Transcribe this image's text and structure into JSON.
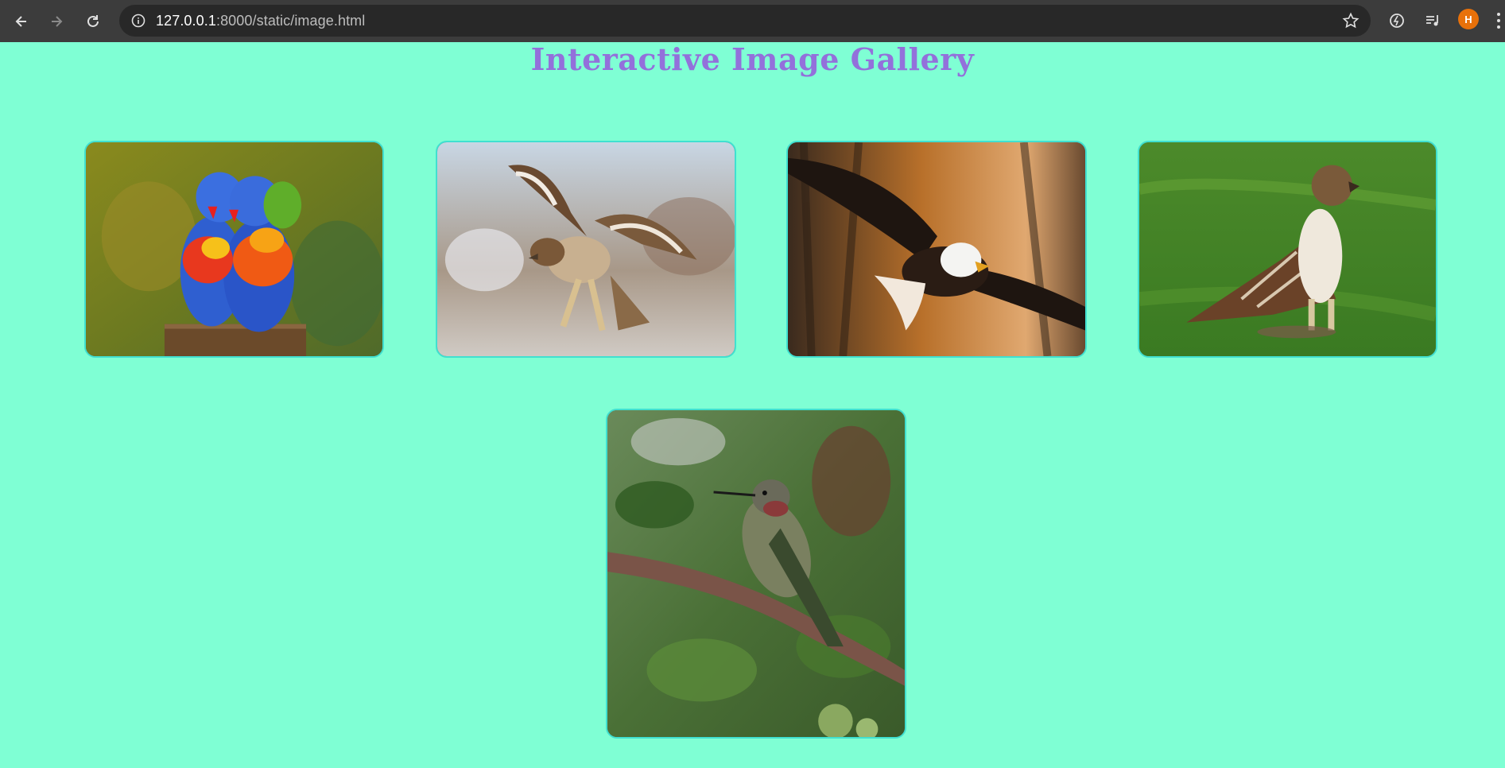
{
  "browser": {
    "url_host": "127.0.0.1",
    "url_rest": ":8000/static/image.html",
    "avatar_initial": "H"
  },
  "page": {
    "title": "Interactive Image Gallery"
  },
  "gallery": {
    "images": [
      {
        "subject": "rainbow-lorikeets"
      },
      {
        "subject": "hawk-landing"
      },
      {
        "subject": "bald-eagle-flying"
      },
      {
        "subject": "red-tailed-hawk-on-grass"
      },
      {
        "subject": "hummingbird-on-branch"
      }
    ]
  },
  "colors": {
    "background": "#7fffd4",
    "title": "#9370db",
    "card_border": "#40e0d0"
  }
}
